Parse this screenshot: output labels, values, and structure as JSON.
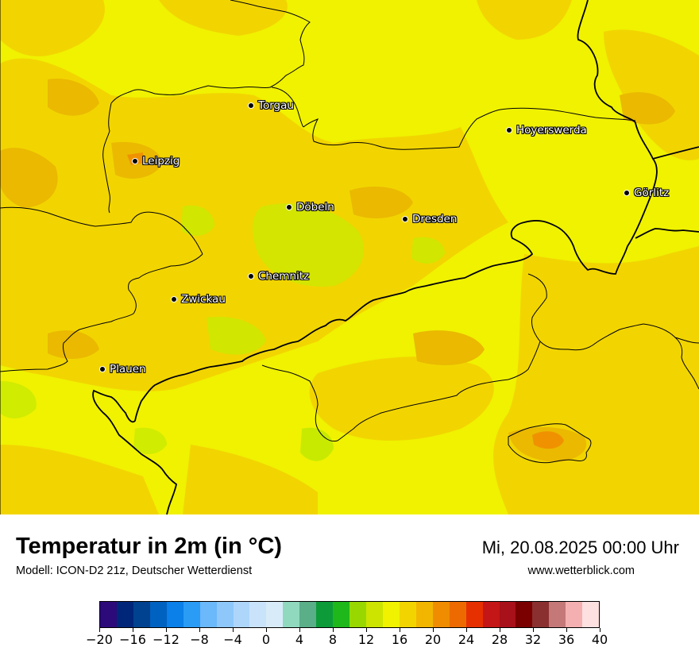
{
  "map": {
    "region": "Sachsen",
    "cities": [
      {
        "name": "Torgau"
      },
      {
        "name": "Leipzig"
      },
      {
        "name": "Hoyerswerda"
      },
      {
        "name": "Görlitz"
      },
      {
        "name": "Döbeln"
      },
      {
        "name": "Dresden"
      },
      {
        "name": "Chemnitz"
      },
      {
        "name": "Zwickau"
      },
      {
        "name": "Plauen"
      }
    ],
    "colors": {
      "base_yellow": "#f0f200",
      "warm_yellow": "#f2d500",
      "amber": "#eab900",
      "orange": "#f09200",
      "yellowgreen": "#c8ea00",
      "border_line": "#000000"
    }
  },
  "header": {
    "title": "Temperatur in 2m (in °C)",
    "model": "Modell: ICON-D2 21z, Deutscher Wetterdienst",
    "datetime": "Mi, 20.08.2025 00:00 Uhr",
    "website": "www.wetterblick.com"
  },
  "legend": {
    "min": -20,
    "max": 40,
    "step": 2,
    "tick_labels": [
      "−20",
      "−16",
      "−12",
      "−8",
      "−4",
      "0",
      "4",
      "8",
      "12",
      "16",
      "20",
      "24",
      "28",
      "32",
      "36",
      "40"
    ],
    "colors": [
      "#2c0a7a",
      "#00267a",
      "#00428f",
      "#0062c0",
      "#0a80e8",
      "#2a9cf5",
      "#6bb8fa",
      "#8ec8fb",
      "#aed6fb",
      "#c9e3fb",
      "#d8ebf8",
      "#90d9be",
      "#5aae88",
      "#0d9b3a",
      "#1fb81a",
      "#98d800",
      "#cce400",
      "#f0f200",
      "#f2d500",
      "#f2b600",
      "#f08c00",
      "#ec6a00",
      "#e63000",
      "#c41616",
      "#a8101a",
      "#7a0000",
      "#8a3030",
      "#c47878",
      "#f4b0b0",
      "#fde0e0"
    ]
  }
}
